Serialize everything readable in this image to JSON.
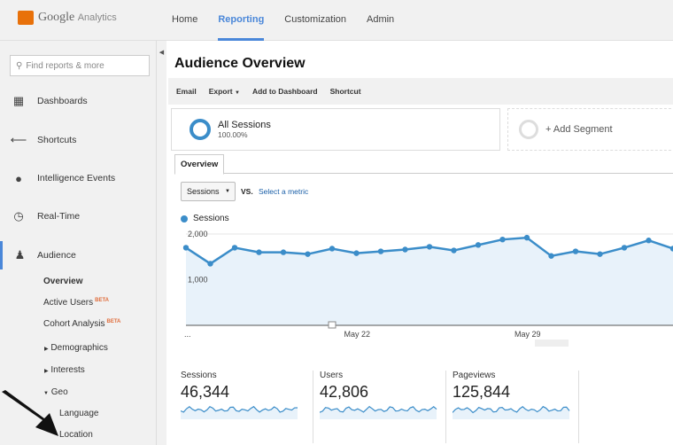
{
  "app": {
    "brand": "Google",
    "product": "Analytics"
  },
  "nav": [
    {
      "label": "Home"
    },
    {
      "label": "Reporting",
      "active": true
    },
    {
      "label": "Customization"
    },
    {
      "label": "Admin"
    }
  ],
  "sidebar": {
    "search_placeholder": "Find reports & more",
    "items": [
      {
        "label": "Dashboards",
        "icon": "grid-icon"
      },
      {
        "label": "Shortcuts",
        "icon": "shortcut-arrow-icon"
      },
      {
        "label": "Intelligence Events",
        "icon": "lightbulb-icon"
      },
      {
        "label": "Real-Time",
        "icon": "clock-icon"
      },
      {
        "label": "Audience",
        "icon": "people-icon",
        "active": true
      }
    ],
    "audience_sub": [
      {
        "label": "Overview"
      },
      {
        "label": "Active Users",
        "badge": "BETA"
      },
      {
        "label": "Cohort Analysis",
        "badge": "BETA"
      },
      {
        "label": "Demographics"
      },
      {
        "label": "Interests"
      },
      {
        "label": "Geo"
      },
      {
        "label": "Language"
      },
      {
        "label": "Location"
      }
    ]
  },
  "page": {
    "title": "Audience Overview"
  },
  "toolbar": {
    "email": "Email",
    "export": "Export",
    "add_dashboard": "Add to Dashboard",
    "shortcut": "Shortcut"
  },
  "segments": {
    "name": "All Sessions",
    "pct": "100.00%",
    "add": "+ Add Segment"
  },
  "tabs": {
    "overview": "Overview"
  },
  "metric_select": {
    "value": "Sessions",
    "vs": "VS.",
    "select": "Select a metric"
  },
  "colors": {
    "accent": "#4a87d9",
    "series": "#3b8dc9",
    "fill": "#e8f2fa"
  },
  "chart_data": {
    "type": "area",
    "legend": "Sessions",
    "series": [
      {
        "name": "Sessions",
        "values": [
          1700,
          1350,
          1700,
          1600,
          1600,
          1560,
          1680,
          1580,
          1620,
          1660,
          1720,
          1640,
          1760,
          1880,
          1920,
          1520,
          1620,
          1560,
          1700,
          1860,
          1680
        ]
      }
    ],
    "x_tick_labels": [
      "...",
      "May 22",
      "May 29"
    ],
    "y_tick_labels": [
      "2,000",
      "1,000"
    ],
    "ylim": [
      0,
      2000
    ],
    "grid": true
  },
  "metrics": [
    {
      "label": "Sessions",
      "value": "46,344"
    },
    {
      "label": "Users",
      "value": "42,806"
    },
    {
      "label": "Pageviews",
      "value": "125,844"
    }
  ]
}
